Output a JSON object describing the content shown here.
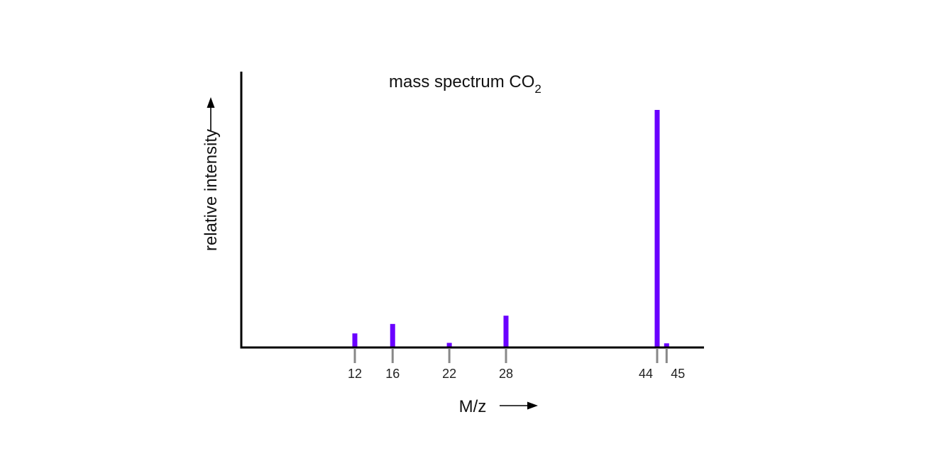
{
  "chart_data": {
    "type": "bar",
    "title": "mass spectrum CO",
    "title_subscript": "2",
    "xlabel": "M/z",
    "ylabel": "relative intensity",
    "x": [
      12,
      16,
      22,
      28,
      44,
      45
    ],
    "values": [
      5.5,
      9.5,
      1.5,
      13,
      100,
      1.3
    ],
    "tick_labels": [
      "12",
      "16",
      "22",
      "28",
      "44",
      "45"
    ],
    "ylim": [
      0,
      115
    ],
    "grid": false,
    "colors": {
      "bar": "#6a00ff",
      "axis": "#000000",
      "tick": "#888888"
    }
  }
}
